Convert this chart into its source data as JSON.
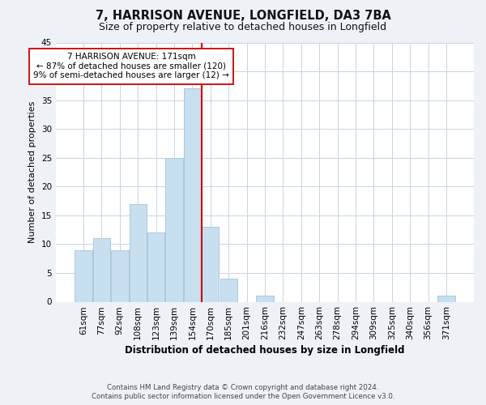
{
  "title": "7, HARRISON AVENUE, LONGFIELD, DA3 7BA",
  "subtitle": "Size of property relative to detached houses in Longfield",
  "xlabel": "Distribution of detached houses by size in Longfield",
  "ylabel": "Number of detached properties",
  "bar_labels": [
    "61sqm",
    "77sqm",
    "92sqm",
    "108sqm",
    "123sqm",
    "139sqm",
    "154sqm",
    "170sqm",
    "185sqm",
    "201sqm",
    "216sqm",
    "232sqm",
    "247sqm",
    "263sqm",
    "278sqm",
    "294sqm",
    "309sqm",
    "325sqm",
    "340sqm",
    "356sqm",
    "371sqm"
  ],
  "bar_values": [
    9,
    11,
    9,
    17,
    12,
    25,
    37,
    13,
    4,
    0,
    1,
    0,
    0,
    0,
    0,
    0,
    0,
    0,
    0,
    0,
    1
  ],
  "bar_color": "#c8dff0",
  "bar_edge_color": "#aac8e0",
  "vline_color": "#cc0000",
  "vline_x_index": 6.5,
  "ylim": [
    0,
    45
  ],
  "yticks": [
    0,
    5,
    10,
    15,
    20,
    25,
    30,
    35,
    40,
    45
  ],
  "annotation_title": "7 HARRISON AVENUE: 171sqm",
  "annotation_line1": "← 87% of detached houses are smaller (120)",
  "annotation_line2": "9% of semi-detached houses are larger (12) →",
  "footer_line1": "Contains HM Land Registry data © Crown copyright and database right 2024.",
  "footer_line2": "Contains public sector information licensed under the Open Government Licence v3.0.",
  "background_color": "#eef2f7",
  "plot_background_color": "#ffffff",
  "grid_color": "#c8d4e0"
}
